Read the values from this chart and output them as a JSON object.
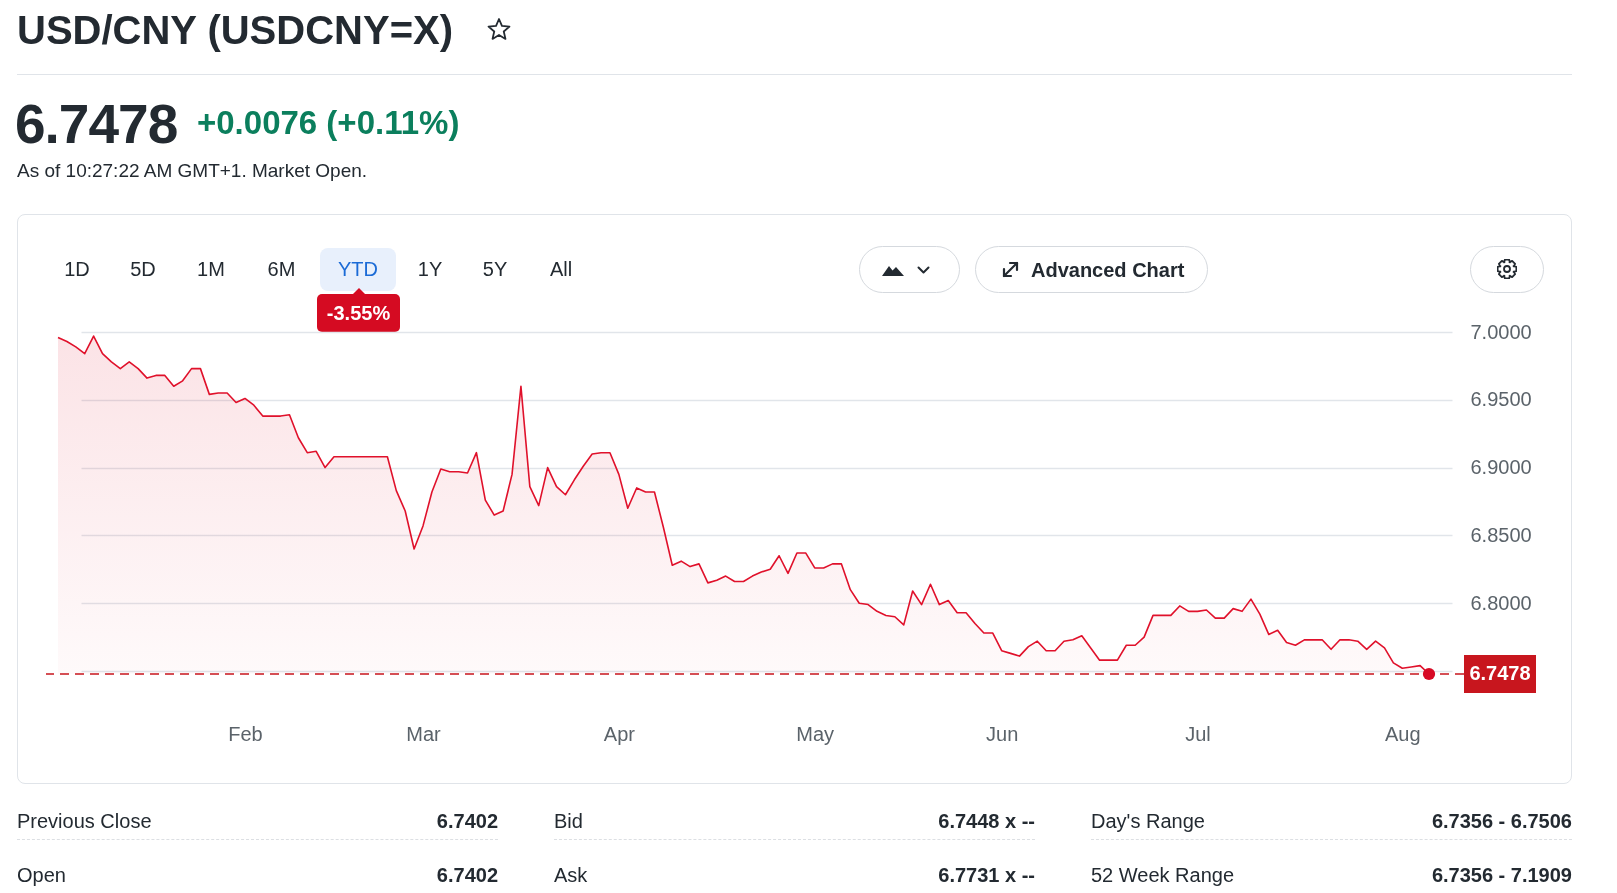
{
  "chart_data": {
    "type": "area",
    "title": "USD/CNY (USDCNY=X)",
    "subtitle": "As of 10:27:22 AM GMT+1. Market Open.",
    "annotations": [
      "6.7478",
      "+0.0076 (+0.11%)",
      "1D",
      "5D",
      "1M",
      "6M",
      "YTD",
      "1Y",
      "5Y",
      "All",
      "-3.55%",
      "Advanced Chart",
      "Previous Close",
      "6.7402",
      "Bid",
      "6.7448 x --",
      "Day's Range",
      "6.7356 - 6.7506",
      "Open",
      "6.7402",
      "Ask",
      "6.7731 x --",
      "52 Week Range",
      "6.7356 - 7.1909"
    ],
    "categories": [
      null,
      null,
      null,
      null,
      null,
      null,
      null,
      null,
      null,
      null,
      null,
      null,
      null,
      null,
      null,
      null,
      null,
      null,
      null,
      null,
      null,
      "Feb",
      null,
      null,
      null,
      null,
      null,
      null,
      null,
      null,
      null,
      null,
      null,
      null,
      null,
      null,
      null,
      null,
      null,
      null,
      null,
      "Mar",
      null,
      null,
      null,
      null,
      null,
      null,
      null,
      null,
      null,
      null,
      null,
      null,
      null,
      null,
      null,
      null,
      null,
      null,
      null,
      null,
      null,
      "Apr",
      null,
      null,
      null,
      null,
      null,
      null,
      null,
      null,
      null,
      null,
      null,
      null,
      null,
      null,
      null,
      null,
      null,
      null,
      null,
      null,
      null,
      "May",
      null,
      null,
      null,
      null,
      null,
      null,
      null,
      null,
      null,
      null,
      null,
      null,
      null,
      null,
      null,
      null,
      null,
      null,
      null,
      null,
      "Jun",
      null,
      null,
      null,
      null,
      null,
      null,
      null,
      null,
      null,
      null,
      null,
      null,
      null,
      null,
      null,
      null,
      null,
      null,
      null,
      null,
      null,
      "Jul",
      null,
      null,
      null,
      null,
      null,
      null,
      null,
      null,
      null,
      null,
      null,
      null,
      null,
      null,
      null,
      null,
      null,
      null,
      null,
      null,
      null,
      null,
      "Aug",
      null,
      null,
      null
    ],
    "series": [
      {
        "color": "#e0112b",
        "values": [
          6.996,
          6.993,
          6.989,
          6.984,
          6.997,
          6.984,
          6.978,
          6.973,
          6.978,
          6.973,
          6.966,
          6.968,
          6.968,
          6.96,
          6.964,
          6.973,
          6.973,
          6.954,
          6.955,
          6.955,
          6.948,
          6.951,
          6.946,
          6.938,
          6.938,
          6.938,
          6.939,
          6.922,
          6.911,
          6.912,
          6.9,
          6.908,
          6.908,
          6.908,
          6.908,
          6.908,
          6.908,
          6.908,
          6.883,
          6.868,
          6.84,
          6.857,
          6.882,
          6.899,
          6.897,
          6.897,
          6.896,
          6.911,
          6.876,
          6.865,
          6.868,
          6.895,
          6.96,
          6.886,
          6.872,
          6.9,
          6.886,
          6.88,
          6.891,
          6.901,
          6.91,
          6.911,
          6.911,
          6.895,
          6.87,
          6.885,
          6.882,
          6.882,
          6.856,
          6.828,
          6.831,
          6.827,
          6.829,
          6.815,
          6.817,
          6.82,
          6.816,
          6.816,
          6.82,
          6.823,
          6.825,
          6.835,
          6.822,
          6.837,
          6.837,
          6.826,
          6.826,
          6.829,
          6.829,
          6.81,
          6.8,
          6.799,
          6.794,
          6.791,
          6.79,
          6.784,
          6.809,
          6.799,
          6.814,
          6.799,
          6.802,
          6.793,
          6.793,
          6.785,
          6.778,
          6.778,
          6.765,
          6.763,
          6.761,
          6.768,
          6.772,
          6.765,
          6.765,
          6.772,
          6.773,
          6.776,
          6.767,
          6.758,
          6.758,
          6.758,
          6.769,
          6.769,
          6.775,
          6.791,
          6.791,
          6.791,
          6.798,
          6.794,
          6.794,
          6.795,
          6.789,
          6.789,
          6.796,
          6.794,
          6.803,
          6.792,
          6.777,
          6.78,
          6.771,
          6.769,
          6.773,
          6.773,
          6.773,
          6.766,
          6.773,
          6.773,
          6.772,
          6.766,
          6.772,
          6.767,
          6.756,
          6.752,
          6.753,
          6.754,
          6.7478
        ]
      },
      {
        "type": "scatter",
        "color": "#d70a25",
        "values": [
          null,
          null,
          null,
          null,
          null,
          null,
          null,
          null,
          null,
          null,
          null,
          null,
          null,
          null,
          null,
          null,
          null,
          null,
          null,
          null,
          null,
          null,
          null,
          null,
          null,
          null,
          null,
          null,
          null,
          null,
          null,
          null,
          null,
          null,
          null,
          null,
          null,
          null,
          null,
          null,
          null,
          null,
          null,
          null,
          null,
          null,
          null,
          null,
          null,
          null,
          null,
          null,
          null,
          null,
          null,
          null,
          null,
          null,
          null,
          null,
          null,
          null,
          null,
          null,
          null,
          null,
          null,
          null,
          null,
          null,
          null,
          null,
          null,
          null,
          null,
          null,
          null,
          null,
          null,
          null,
          null,
          null,
          null,
          null,
          null,
          null,
          null,
          null,
          null,
          null,
          null,
          null,
          null,
          null,
          null,
          null,
          null,
          null,
          null,
          null,
          null,
          null,
          null,
          null,
          null,
          null,
          null,
          null,
          null,
          null,
          null,
          null,
          null,
          null,
          null,
          null,
          null,
          null,
          null,
          null,
          null,
          null,
          null,
          null,
          null,
          null,
          null,
          null,
          null,
          null,
          null,
          null,
          null,
          null,
          null,
          null,
          null,
          null,
          null,
          null,
          null,
          null,
          null,
          null,
          null,
          null,
          null,
          null,
          null,
          null,
          null,
          null,
          null,
          null,
          6.7478
        ]
      }
    ],
    "ylim": [
      6.7478,
      7.0
    ],
    "yticks": [
      {
        "value": 6.75,
        "label": null
      },
      {
        "value": 6.8,
        "label": "6.8000"
      },
      {
        "value": 6.85,
        "label": "6.8500"
      },
      {
        "value": 6.9,
        "label": "6.9000"
      },
      {
        "value": 6.95,
        "label": "6.9500"
      },
      {
        "value": 7,
        "label": "7.0000"
      }
    ],
    "ref_lines": [
      {
        "axis": "y",
        "value": 6.7478,
        "label": "6.7478",
        "color": "#c8161e",
        "line_style": "dashed"
      }
    ],
    "grid": "y"
  }
}
